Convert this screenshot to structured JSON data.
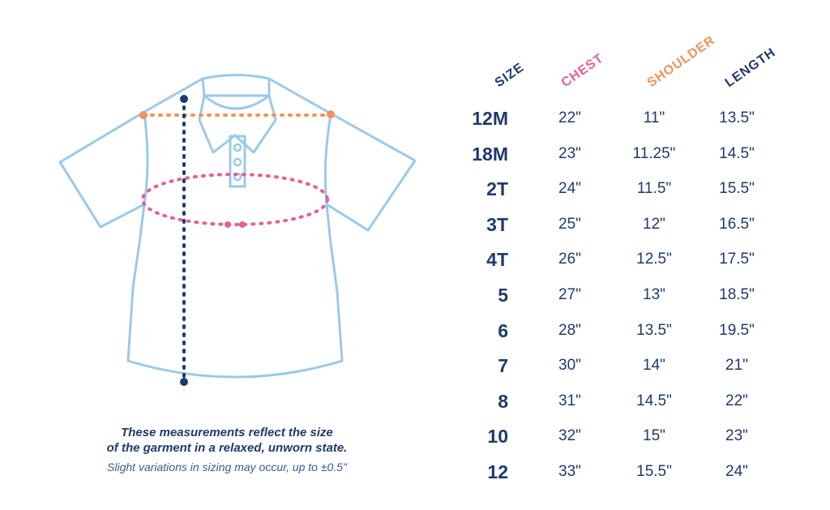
{
  "caption": {
    "line1": "These measurements reflect the size",
    "line2": "of the garment in a relaxed, unworn state.",
    "note": "Slight variations in sizing may occur, up to ±0.5\""
  },
  "headers": {
    "size": "SIZE",
    "chest": "CHEST",
    "shoulder": "SHOULDER",
    "length": "LENGTH"
  },
  "colors": {
    "navy": "#1f3a6e",
    "chest": "#e4609a",
    "shoulder": "#f0925b",
    "shirt_outline": "#9ac9ea"
  },
  "rows": [
    {
      "size": "12M",
      "chest": "22\"",
      "shoulder": "11\"",
      "length": "13.5\""
    },
    {
      "size": "18M",
      "chest": "23\"",
      "shoulder": "11.25\"",
      "length": "14.5\""
    },
    {
      "size": "2T",
      "chest": "24\"",
      "shoulder": "11.5\"",
      "length": "15.5\""
    },
    {
      "size": "3T",
      "chest": "25\"",
      "shoulder": "12\"",
      "length": "16.5\""
    },
    {
      "size": "4T",
      "chest": "26\"",
      "shoulder": "12.5\"",
      "length": "17.5\""
    },
    {
      "size": "5",
      "chest": "27\"",
      "shoulder": "13\"",
      "length": "18.5\""
    },
    {
      "size": "6",
      "chest": "28\"",
      "shoulder": "13.5\"",
      "length": "19.5\""
    },
    {
      "size": "7",
      "chest": "30\"",
      "shoulder": "14\"",
      "length": "21\""
    },
    {
      "size": "8",
      "chest": "31\"",
      "shoulder": "14.5\"",
      "length": "22\""
    },
    {
      "size": "10",
      "chest": "32\"",
      "shoulder": "15\"",
      "length": "23\""
    },
    {
      "size": "12",
      "chest": "33\"",
      "shoulder": "15.5\"",
      "length": "24\""
    }
  ]
}
